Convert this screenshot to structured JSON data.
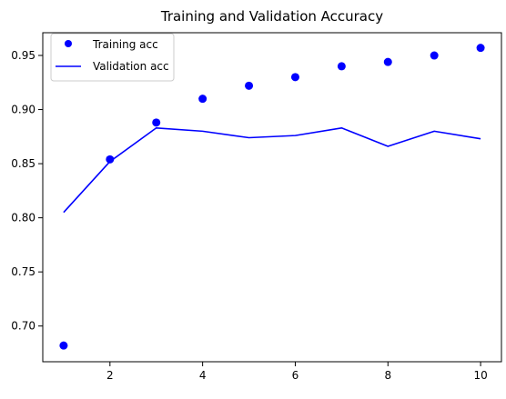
{
  "chart_data": {
    "type": "line",
    "title": "Training and Validation Accuracy",
    "xlabel": "",
    "ylabel": "",
    "x": [
      1,
      2,
      3,
      4,
      5,
      6,
      7,
      8,
      9,
      10
    ],
    "xlim": [
      0.55,
      10.45
    ],
    "ylim": [
      0.667,
      0.971
    ],
    "xticks": [
      2,
      4,
      6,
      8,
      10
    ],
    "yticks": [
      0.7,
      0.75,
      0.8,
      0.85,
      0.9,
      0.95
    ],
    "ytick_labels": [
      "0.70",
      "0.75",
      "0.80",
      "0.85",
      "0.90",
      "0.95"
    ],
    "grid": false,
    "legend_position": "upper-left",
    "series": [
      {
        "name": "Training acc",
        "style": "markers",
        "color": "#0000ff",
        "values": [
          0.682,
          0.854,
          0.888,
          0.91,
          0.922,
          0.93,
          0.94,
          0.944,
          0.95,
          0.957
        ]
      },
      {
        "name": "Validation acc",
        "style": "line",
        "color": "#0000ff",
        "values": [
          0.805,
          0.852,
          0.883,
          0.88,
          0.874,
          0.876,
          0.883,
          0.866,
          0.88,
          0.873
        ]
      }
    ]
  }
}
